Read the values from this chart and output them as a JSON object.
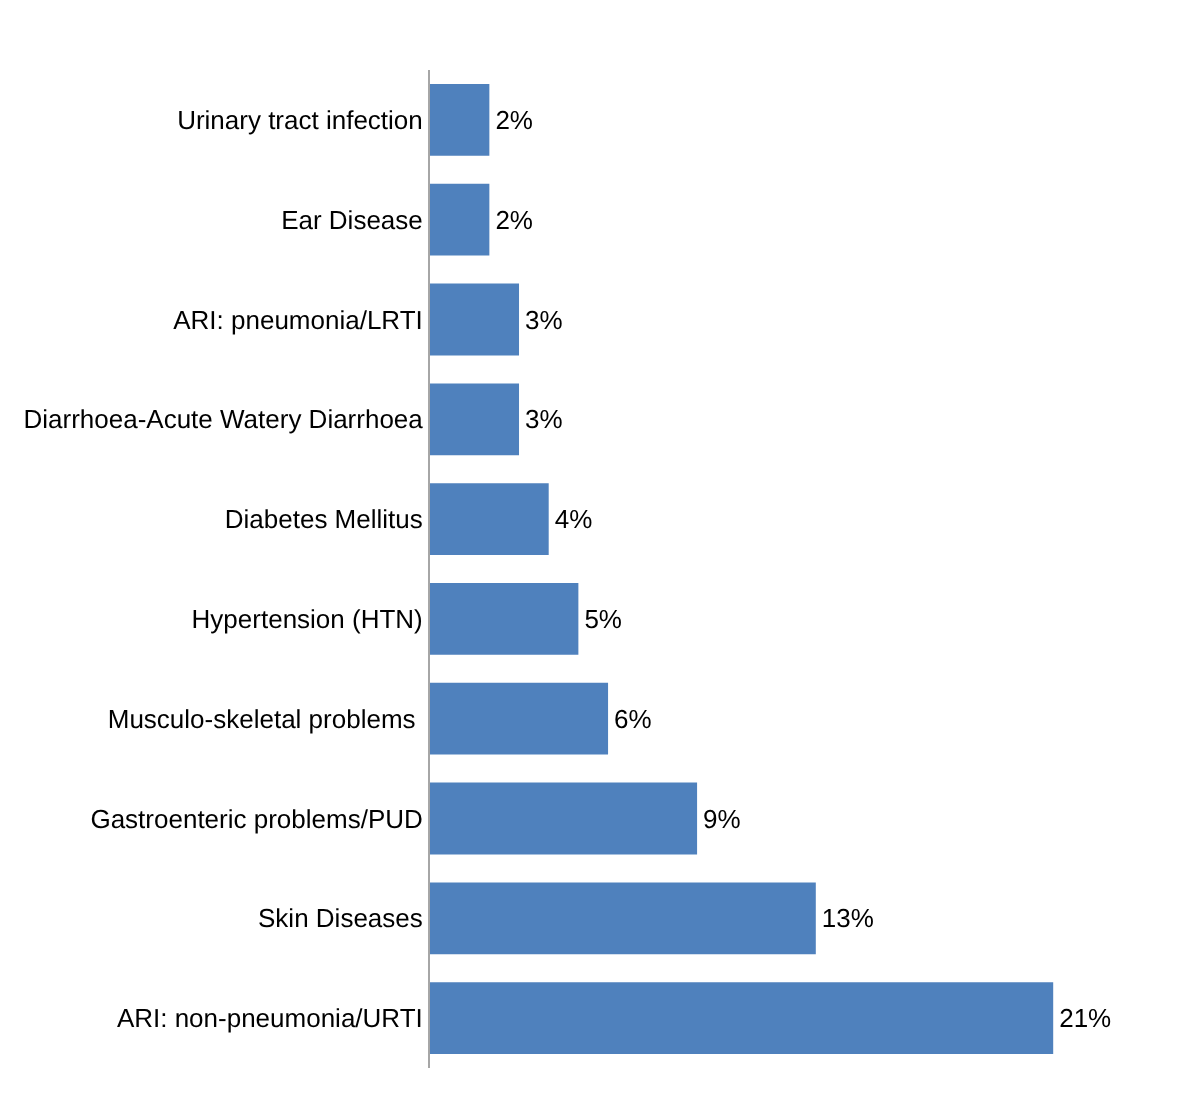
{
  "chart_data": {
    "type": "bar",
    "orientation": "horizontal",
    "categories": [
      "Urinary tract infection",
      "Ear Disease",
      "ARI: pneumonia/LRTI",
      "Diarrhoea-Acute Watery Diarrhoea",
      "Diabetes Mellitus",
      "Hypertension (HTN)",
      "Musculo-skeletal problems ",
      "Gastroenteric problems/PUD",
      "Skin Diseases",
      "ARI: non-pneumonia/URTI"
    ],
    "values": [
      2,
      2,
      3,
      3,
      4,
      5,
      6,
      9,
      13,
      21
    ],
    "value_labels": [
      "2%",
      "2%",
      "3%",
      "3%",
      "4%",
      "5%",
      "6%",
      "9%",
      "13%",
      "21%"
    ],
    "color": "#4f81bd"
  }
}
